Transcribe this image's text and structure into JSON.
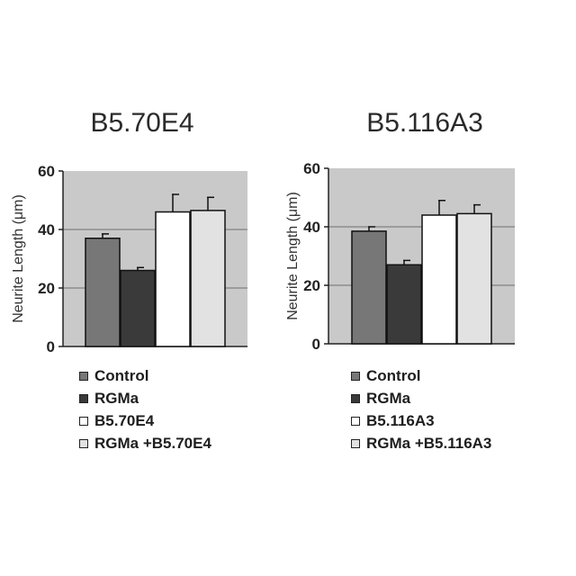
{
  "chart_data": [
    {
      "type": "bar",
      "title": "B5.70E4",
      "ylabel": "Neurite Length (μm)",
      "ylim": [
        0,
        60
      ],
      "yticks": [
        0,
        20,
        40,
        60
      ],
      "grid": true,
      "legend_position": "bottom",
      "series": [
        {
          "name": "Control",
          "value": 37,
          "error": 1.5,
          "color": "#777777"
        },
        {
          "name": "RGMa",
          "value": 26,
          "error": 1.0,
          "color": "#3a3a3a"
        },
        {
          "name": "B5.70E4",
          "value": 46,
          "error": 6.0,
          "color": "#ffffff"
        },
        {
          "name": "RGMa +B5.70E4",
          "value": 46.5,
          "error": 4.5,
          "color": "#e2e2e2"
        }
      ]
    },
    {
      "type": "bar",
      "title": "B5.116A3",
      "ylabel": "Neurite Length (μm)",
      "ylim": [
        0,
        60
      ],
      "yticks": [
        0,
        20,
        40,
        60
      ],
      "grid": true,
      "legend_position": "bottom",
      "series": [
        {
          "name": "Control",
          "value": 38.5,
          "error": 1.5,
          "color": "#777777"
        },
        {
          "name": "RGMa",
          "value": 27,
          "error": 1.5,
          "color": "#3a3a3a"
        },
        {
          "name": "B5.116A3",
          "value": 44,
          "error": 5.0,
          "color": "#ffffff"
        },
        {
          "name": "RGMa +B5.116A3",
          "value": 44.5,
          "error": 3.0,
          "color": "#e2e2e2"
        }
      ]
    }
  ]
}
